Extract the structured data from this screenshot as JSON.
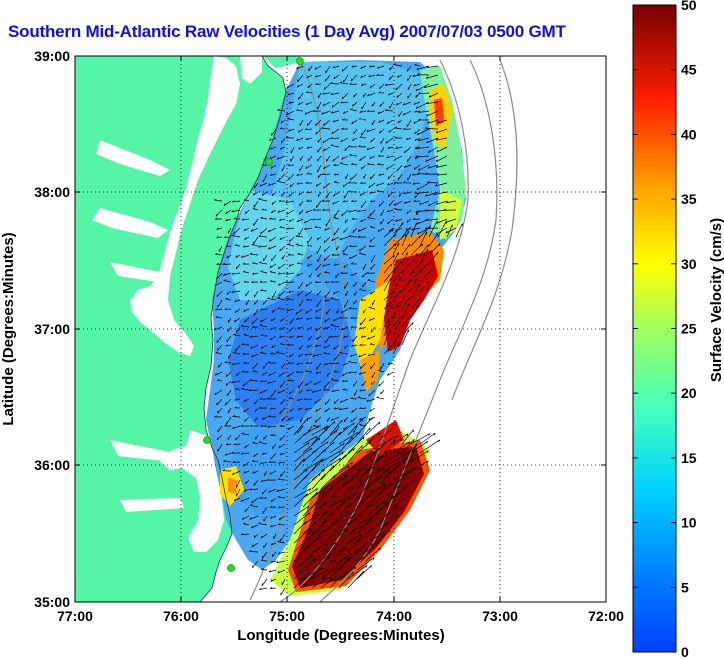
{
  "title": "Southern Mid-Atlantic Raw Velocities (1 Day Avg) 2007/07/03 0500 GMT",
  "xlabel": "Longitude (Degrees:Minutes)",
  "ylabel": "Latitude (Degrees:Minutes)",
  "x_ticks": [
    "77:00",
    "76:00",
    "75:00",
    "74:00",
    "73:00",
    "72:00"
  ],
  "y_ticks": [
    "39:00",
    "38:00",
    "37:00",
    "36:00",
    "35:00"
  ],
  "colorbar": {
    "label": "Surface Velocity (cm/s)",
    "ticks": [
      "0",
      "5",
      "10",
      "15",
      "20",
      "25",
      "30",
      "35",
      "40",
      "45",
      "50"
    ],
    "min": 0,
    "max": 50,
    "colormap": "jet"
  },
  "colors": {
    "land": "#55f5a8",
    "title": "#1010e0",
    "grid": "#000000",
    "station": "#22dd22"
  },
  "map": {
    "lon_range": [
      -77,
      -72
    ],
    "lat_range": [
      35,
      39
    ],
    "grid": "dotted",
    "overlay": "velocity-arrows"
  }
}
